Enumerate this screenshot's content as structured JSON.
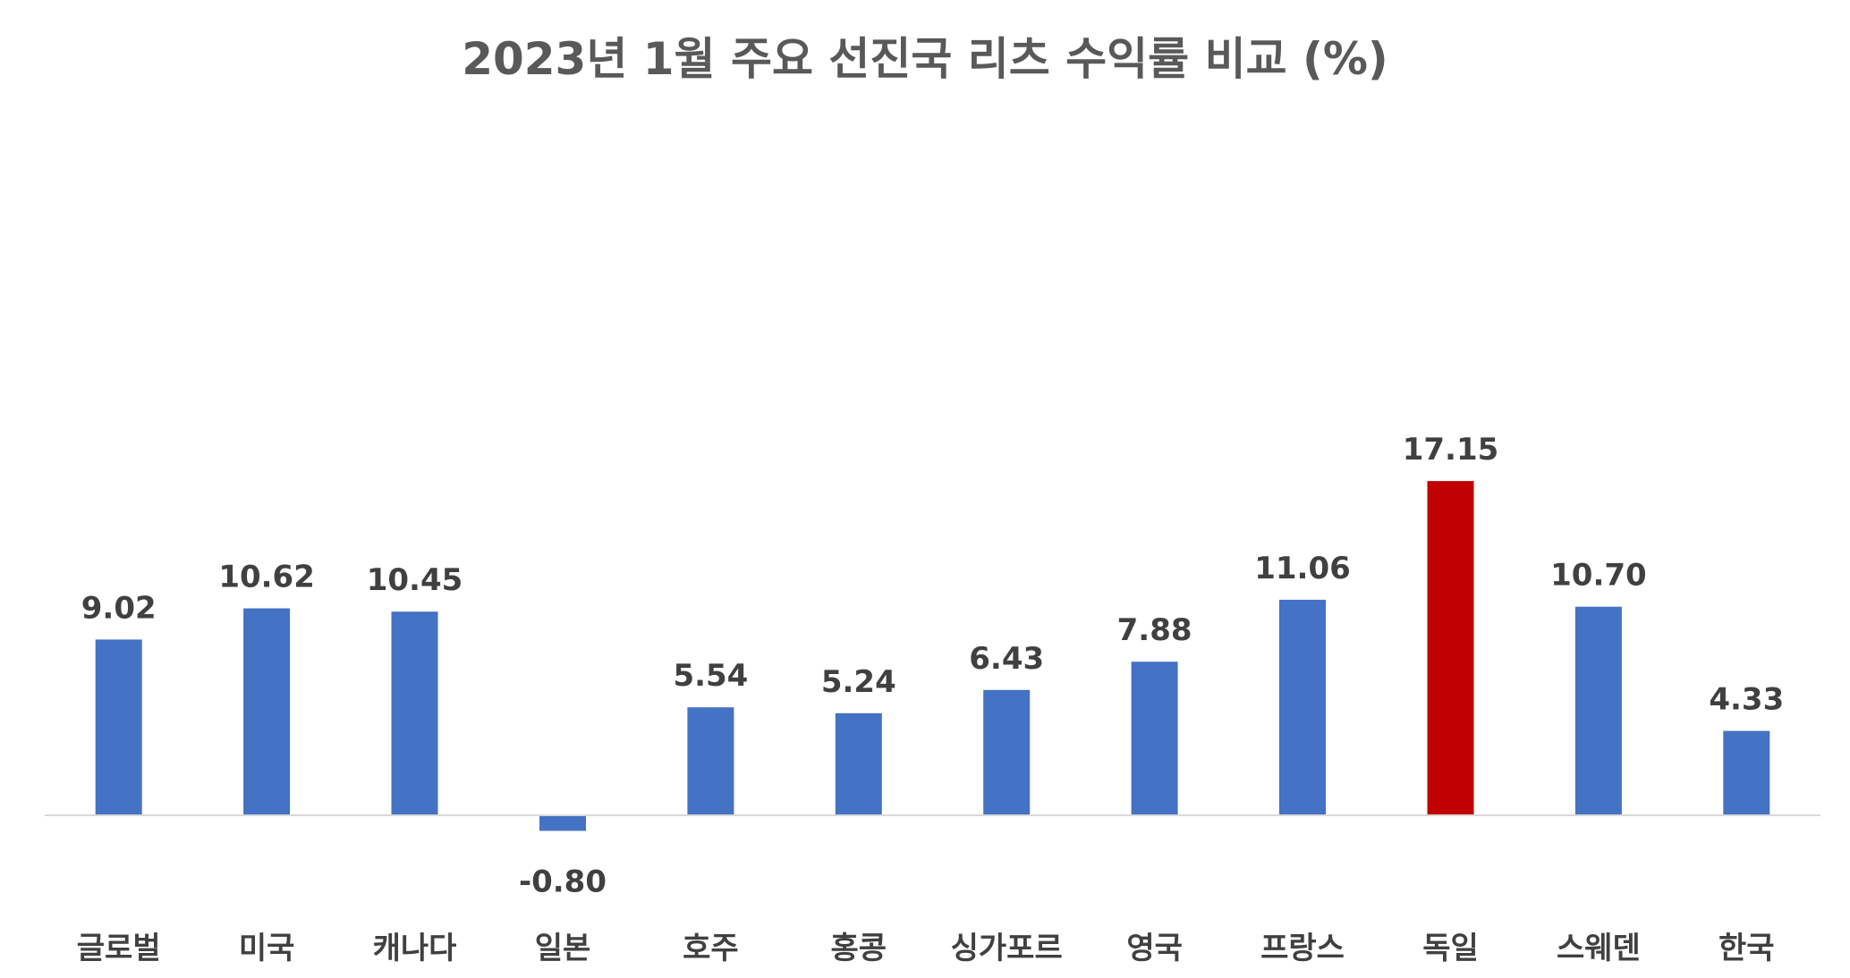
{
  "chart_data": {
    "type": "bar",
    "title": "2023년 1월 주요 선진국 리츠 수익률 비교 (%)",
    "xlabel": "",
    "ylabel": "",
    "categories": [
      "글로벌",
      "미국",
      "캐나다",
      "일본",
      "호주",
      "홍콩",
      "싱가포르",
      "영국",
      "프랑스",
      "독일",
      "스웨덴",
      "한국"
    ],
    "series": [
      {
        "values": [
          9.02,
          10.62,
          10.45,
          -0.8,
          5.54,
          5.24,
          6.43,
          7.88,
          11.06,
          17.15,
          10.7,
          4.33
        ],
        "labels": [
          "9.02",
          "10.62",
          "10.45",
          "-0.80",
          "5.54",
          "5.24",
          "6.43",
          "7.88",
          "11.06",
          "17.15",
          "10.70",
          "4.33"
        ]
      }
    ],
    "grid": false,
    "legend": "none",
    "colors": {
      "bar": "#4472C4",
      "highlight": "#C00000",
      "highlight_category": "독일",
      "axis": "#D9D9D9"
    }
  }
}
